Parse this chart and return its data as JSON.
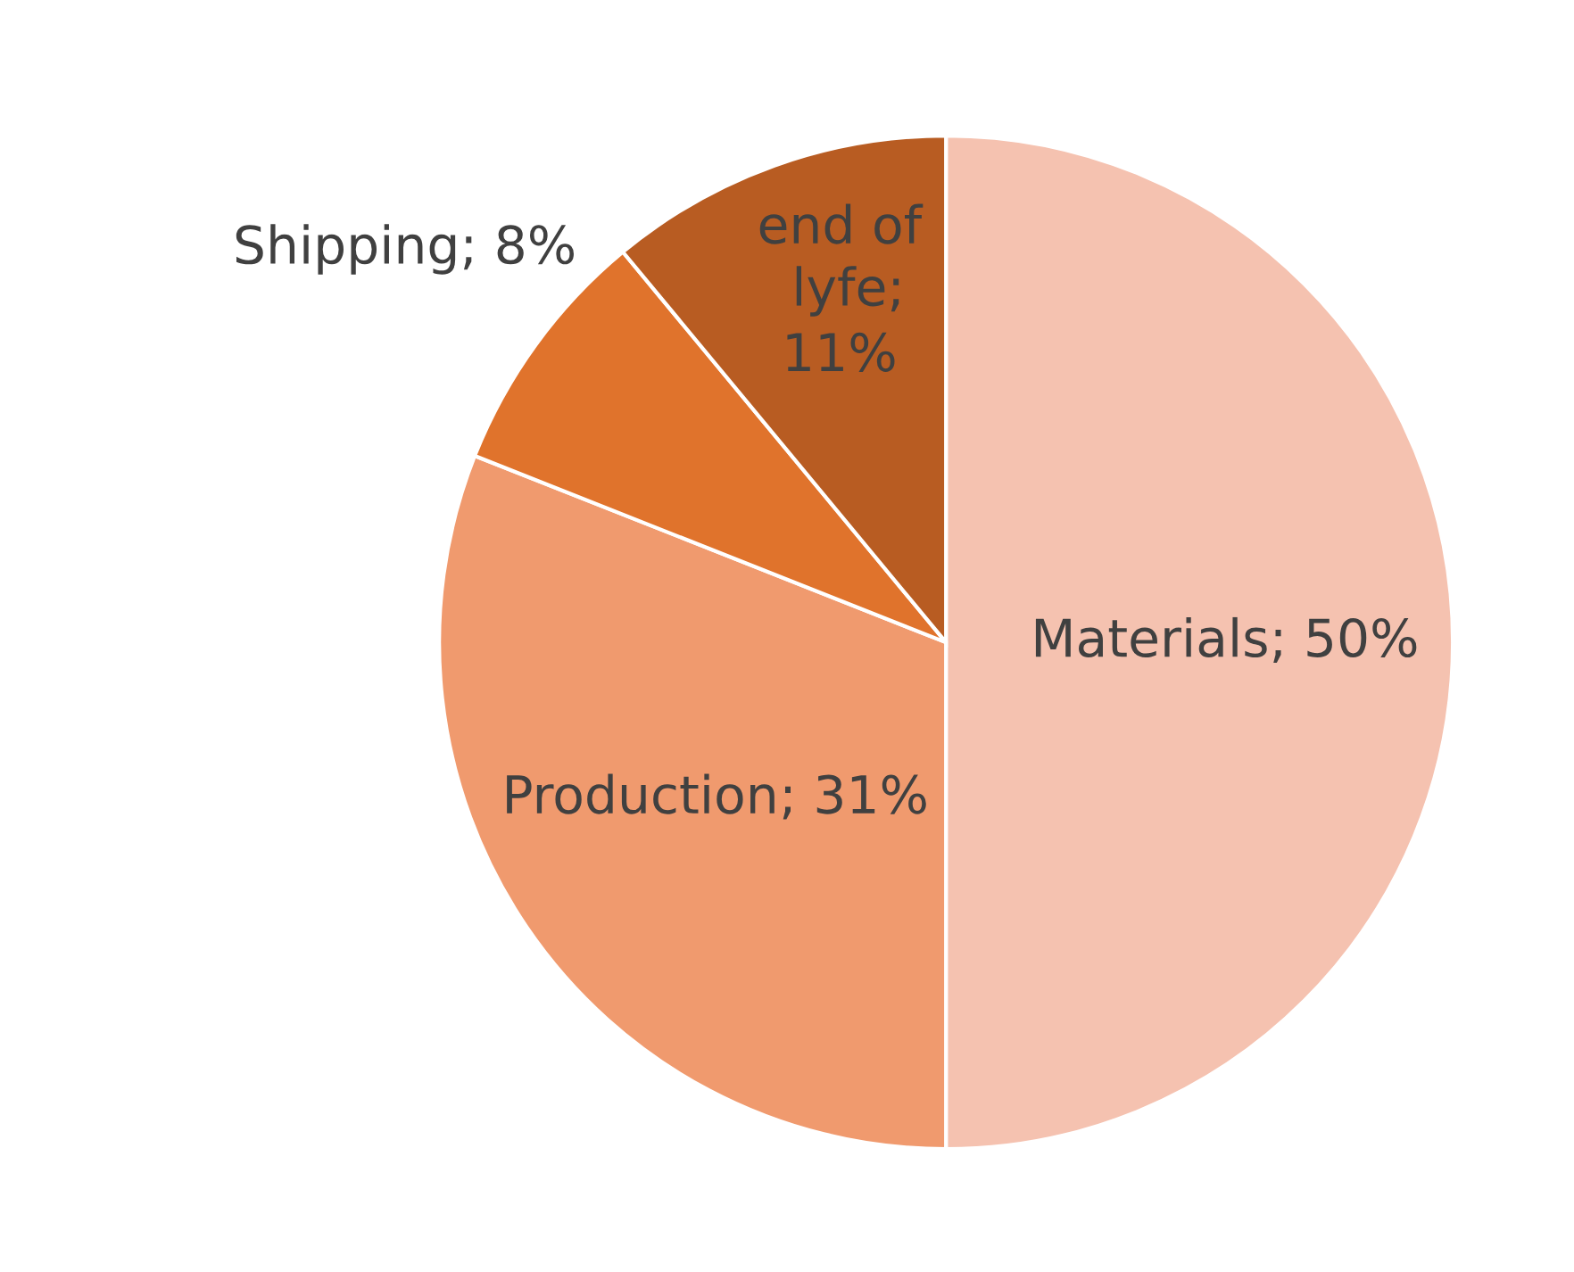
{
  "chart_data": {
    "type": "pie",
    "categories": [
      "Materials",
      "Production",
      "Shipping",
      "end of\nlyfe"
    ],
    "values": [
      50,
      31,
      8,
      11
    ],
    "value_labels": [
      "; 50%",
      "; 31%",
      "; 8%",
      "; 11%"
    ],
    "colors": [
      "#f5c2b0",
      "#f09a6e",
      "#e0732c",
      "#b85c22"
    ],
    "legend": false
  }
}
